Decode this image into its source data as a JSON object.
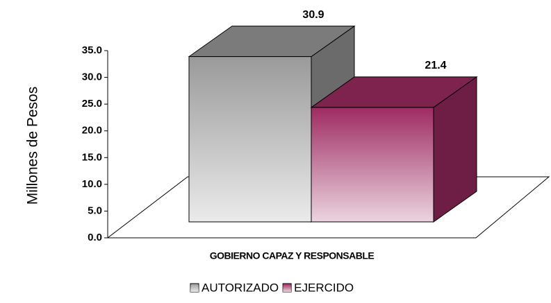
{
  "chart_data": {
    "type": "bar3d",
    "categories": [
      "GOBIERNO CAPAZ Y RESPONSABLE"
    ],
    "series": [
      {
        "name": "AUTORIZADO",
        "color": "#9a9a9a",
        "values": [
          30.9
        ]
      },
      {
        "name": "EJERCIDO",
        "color": "#9e2b62",
        "values": [
          21.4
        ]
      }
    ],
    "ylabel": "Millones de Pesos",
    "ylim": [
      0,
      35
    ],
    "yticks": [
      {
        "value": 0,
        "label": "0.0"
      },
      {
        "value": 5,
        "label": "5.0"
      },
      {
        "value": 10,
        "label": "10.0"
      },
      {
        "value": 15,
        "label": "15.0"
      },
      {
        "value": 20,
        "label": "20.0"
      },
      {
        "value": 25,
        "label": "25.0"
      },
      {
        "value": 30,
        "label": "30.0"
      },
      {
        "value": 35,
        "label": "35.0"
      }
    ],
    "legend": "bottom"
  }
}
